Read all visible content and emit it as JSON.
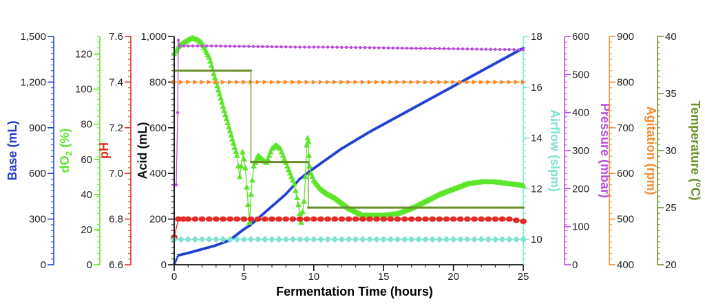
{
  "chart_data": {
    "type": "line",
    "xlabel": "Fermentation Time (hours)",
    "xlim": [
      0,
      25
    ],
    "x_ticks": [
      "0",
      "5",
      "10",
      "15",
      "20",
      "25"
    ],
    "colors": {
      "base": "#1f3fcf",
      "do2": "#5ce62a",
      "ph": "#e02b26",
      "acid": "#111111",
      "airflow": "#7fe3d2",
      "pressure": "#b84cdc",
      "agitation": "#f58a2a",
      "temperature": "#6a8f2a"
    },
    "axes": [
      {
        "key": "base",
        "label": "Base (mL)",
        "min": 0,
        "max": 1500,
        "side": "left",
        "ticks": [
          "0",
          "300",
          "600",
          "900",
          "1,200",
          "1,500"
        ]
      },
      {
        "key": "do2",
        "label": "dO",
        "label_sub": "2",
        "label_tail": " (%)",
        "min": 0,
        "max": 130,
        "side": "left",
        "ticks": [
          "0",
          "20",
          "40",
          "60",
          "80",
          "100",
          "120"
        ]
      },
      {
        "key": "ph",
        "label": "pH",
        "min": 6.6,
        "max": 7.6,
        "side": "left",
        "ticks": [
          "6.6",
          "6.8",
          "7.0",
          "7.2",
          "7.4",
          "7.6"
        ]
      },
      {
        "key": "acid",
        "label": "Acid (mL)",
        "min": 0,
        "max": 1000,
        "side": "left",
        "ticks": [
          "0",
          "200",
          "400",
          "600",
          "800",
          "1,000"
        ]
      },
      {
        "key": "airflow",
        "label": "Airflow (slpm)",
        "min": 9,
        "max": 18,
        "side": "right",
        "ticks": [
          "10",
          "12",
          "14",
          "16",
          "18"
        ]
      },
      {
        "key": "pressure",
        "label": "Pressure (mbar)",
        "min": 0,
        "max": 600,
        "side": "right",
        "ticks": [
          "0",
          "100",
          "200",
          "300",
          "400",
          "500",
          "600"
        ]
      },
      {
        "key": "agitation",
        "label": "Agitation (rpm)",
        "min": 400,
        "max": 900,
        "side": "right",
        "ticks": [
          "400",
          "500",
          "600",
          "700",
          "800",
          "900"
        ]
      },
      {
        "key": "temperature",
        "label": "Temperature (",
        "label_sup": "o",
        "label_tail": "C)",
        "min": 20,
        "max": 40,
        "side": "right",
        "ticks": [
          "20",
          "25",
          "30",
          "35",
          "40"
        ]
      }
    ],
    "series": [
      {
        "name": "Base",
        "axis": "base",
        "marker": "tri-down",
        "x": [
          0,
          0.3,
          1,
          2,
          3,
          4,
          5,
          5.5,
          6,
          7,
          8,
          9,
          9.7,
          10,
          12,
          14,
          16,
          18,
          20,
          22,
          24,
          25
        ],
        "y": [
          0,
          60,
          75,
          100,
          125,
          160,
          230,
          260,
          300,
          380,
          460,
          560,
          610,
          630,
          760,
          870,
          970,
          1070,
          1170,
          1270,
          1370,
          1420
        ]
      },
      {
        "name": "dO2",
        "axis": "do2",
        "marker": "triangle",
        "x": [
          0,
          0.3,
          0.6,
          1,
          1.3,
          1.7,
          2,
          2.5,
          3,
          3.5,
          4,
          4.5,
          4.7,
          4.8,
          4.9,
          5.0,
          5.1,
          5.2,
          5.3,
          5.4,
          5.5,
          5.7,
          6,
          6.3,
          6.6,
          7,
          7.3,
          7.6,
          8,
          8.3,
          8.6,
          8.9,
          9.1,
          9.3,
          9.4,
          9.5,
          9.55,
          9.6,
          9.65,
          9.7,
          9.8,
          10,
          10.5,
          11,
          11.5,
          12,
          12.5,
          13,
          13.5,
          14,
          15,
          16,
          17,
          18,
          19,
          20,
          21,
          22,
          23,
          24,
          25
        ],
        "y": [
          120,
          124,
          126,
          128,
          129,
          128,
          126,
          118,
          104,
          90,
          76,
          62,
          50,
          56,
          64,
          60,
          55,
          44,
          34,
          24,
          40,
          56,
          62,
          60,
          58,
          66,
          68,
          66,
          58,
          52,
          46,
          34,
          24,
          36,
          50,
          68,
          72,
          70,
          62,
          56,
          52,
          48,
          43,
          40,
          38,
          35,
          32,
          30,
          28,
          28,
          28,
          29,
          32,
          36,
          40,
          43,
          46,
          47,
          47,
          46,
          45
        ]
      },
      {
        "name": "pH",
        "axis": "ph",
        "marker": "circle",
        "x": [
          0,
          0.3,
          1,
          2,
          3,
          4,
          5,
          6,
          7,
          8,
          9,
          10,
          11,
          12,
          13,
          14,
          15,
          16,
          17,
          18,
          19,
          20,
          21,
          22,
          23,
          24,
          25
        ],
        "y": [
          6.72,
          6.8,
          6.8,
          6.8,
          6.8,
          6.8,
          6.8,
          6.8,
          6.8,
          6.8,
          6.8,
          6.8,
          6.8,
          6.8,
          6.8,
          6.8,
          6.8,
          6.8,
          6.8,
          6.8,
          6.8,
          6.8,
          6.8,
          6.8,
          6.8,
          6.8,
          6.79
        ]
      },
      {
        "name": "Acid",
        "axis": "acid",
        "marker": "none",
        "x": [
          0,
          25
        ],
        "y": [
          0,
          0
        ]
      },
      {
        "name": "Airflow",
        "axis": "airflow",
        "marker": "diamond",
        "x": [
          0,
          2,
          4,
          6,
          8,
          10,
          12,
          14,
          16,
          18,
          20,
          22,
          24,
          25
        ],
        "y": [
          10,
          10,
          10,
          10,
          10,
          10,
          10,
          10,
          10,
          10,
          10,
          10,
          10,
          10
        ]
      },
      {
        "name": "Pressure",
        "axis": "pressure",
        "marker": "dot",
        "x": [
          0,
          0.15,
          0.25,
          0.3,
          0.4,
          1,
          3,
          5,
          7,
          9,
          11,
          13,
          15,
          17,
          19,
          21,
          23,
          25
        ],
        "y": [
          210,
          210,
          400,
          590,
          575,
          575,
          575,
          574,
          573,
          572,
          572,
          571,
          570,
          569,
          568,
          567,
          566,
          565
        ]
      },
      {
        "name": "Agitation",
        "axis": "agitation",
        "marker": "tri-right",
        "x": [
          0,
          2,
          4,
          6,
          8,
          10,
          12,
          14,
          16,
          18,
          20,
          22,
          24,
          25
        ],
        "y": [
          800,
          800,
          800,
          800,
          800,
          800,
          800,
          800,
          800,
          800,
          800,
          800,
          800,
          800
        ]
      },
      {
        "name": "Temperature",
        "axis": "temperature",
        "marker": "small",
        "x": [
          0,
          5.5,
          5.5,
          9.6,
          9.6,
          25
        ],
        "y": [
          37,
          37,
          29,
          29,
          25,
          25
        ]
      }
    ]
  }
}
